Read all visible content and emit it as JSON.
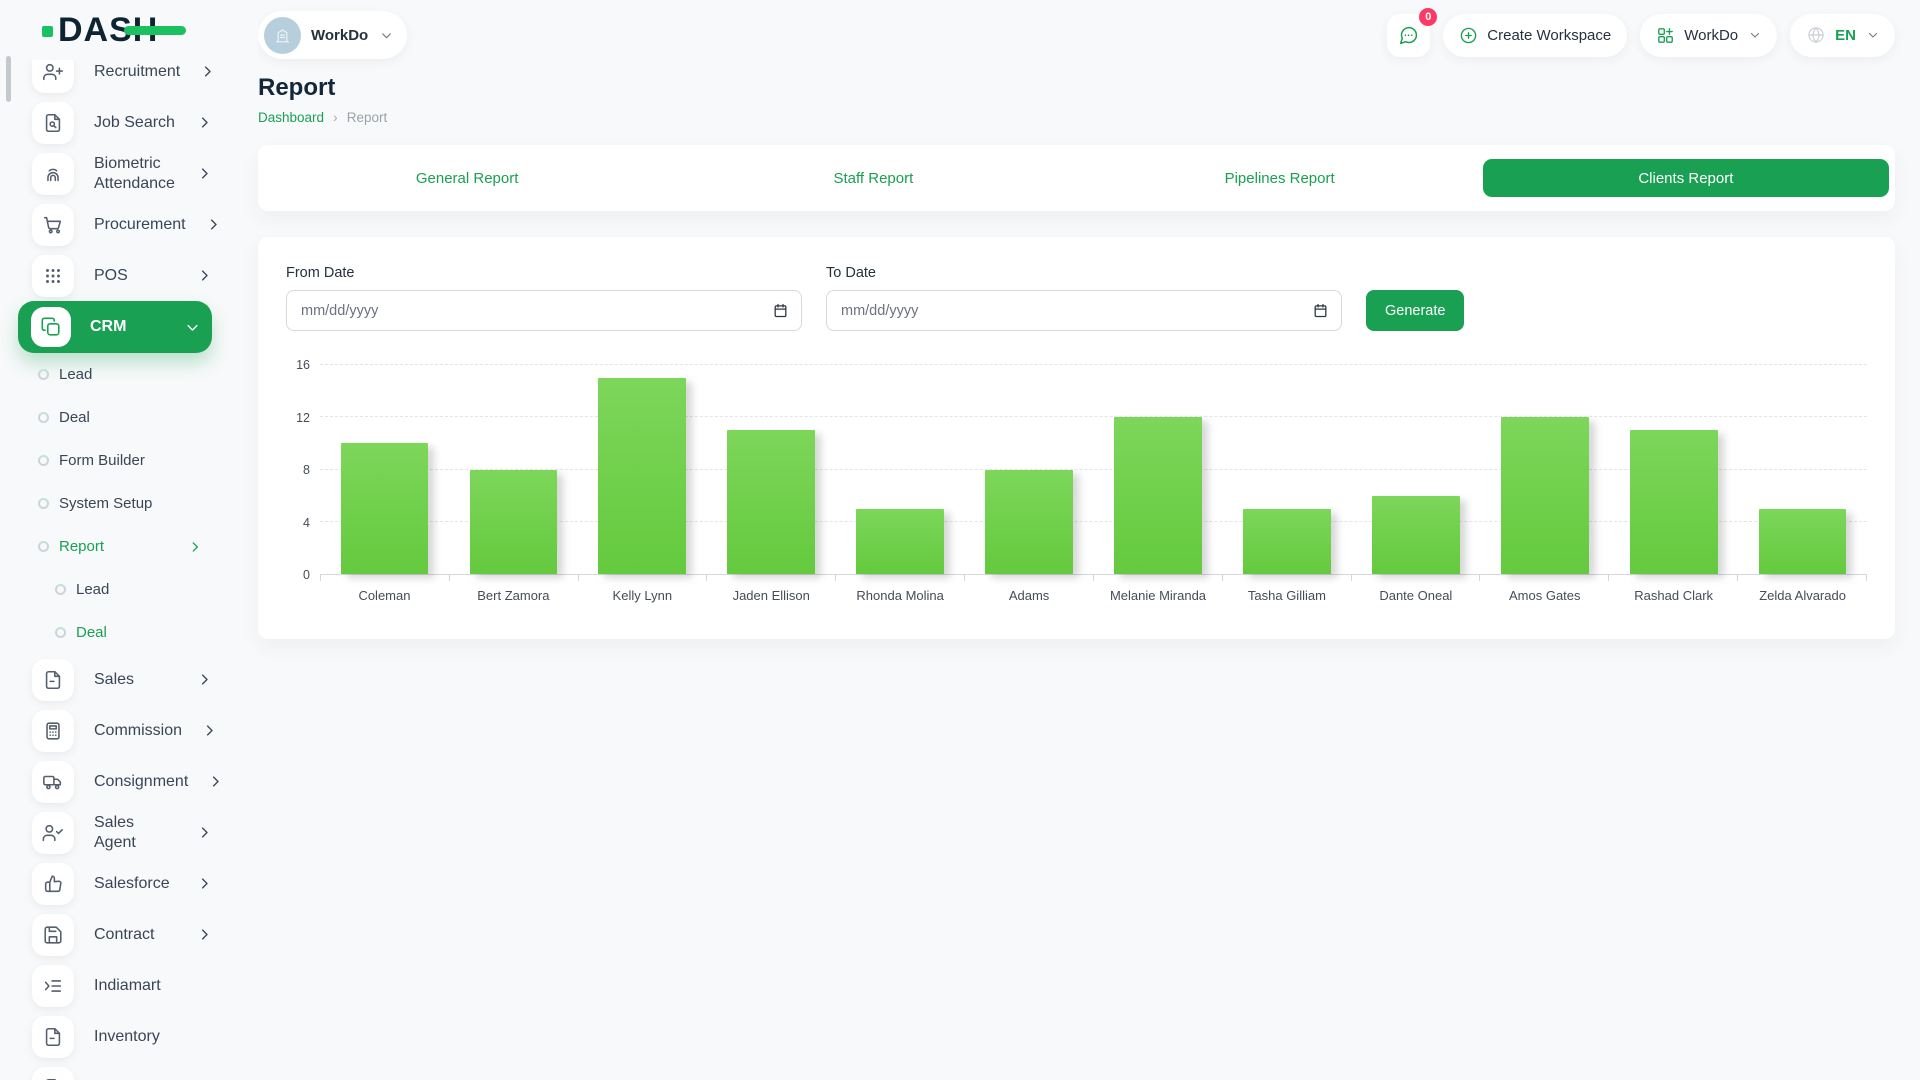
{
  "brand": {
    "name": "DASH"
  },
  "topbar": {
    "workspace": {
      "label": "WorkDo",
      "avatar_icon": "building-icon",
      "chevron_icon": "chevron-down-icon"
    },
    "messages": {
      "icon": "message-circle-icon",
      "badge": "0"
    },
    "create_workspace": {
      "icon": "plus-circle-icon",
      "label": "Create Workspace"
    },
    "app_switcher": {
      "icon": "grid-plus-icon",
      "label": "WorkDo",
      "chevron_icon": "chevron-down-icon"
    },
    "language": {
      "icon": "globe-icon",
      "label": "EN",
      "chevron_icon": "chevron-down-icon"
    }
  },
  "page": {
    "title": "Report",
    "breadcrumb": [
      "Dashboard",
      "Report"
    ],
    "breadcrumb_separator": "›"
  },
  "tabs": [
    {
      "label": "General Report",
      "active": false
    },
    {
      "label": "Staff Report",
      "active": false
    },
    {
      "label": "Pipelines Report",
      "active": false
    },
    {
      "label": "Clients Report",
      "active": true
    }
  ],
  "filters": {
    "from_label": "From Date",
    "to_label": "To Date",
    "date_placeholder": "mm/dd/yyyy",
    "generate_label": "Generate"
  },
  "chart_data": {
    "type": "bar",
    "title": "",
    "xlabel": "",
    "ylabel": "",
    "categories": [
      "Coleman",
      "Bert Zamora",
      "Kelly Lynn",
      "Jaden Ellison",
      "Rhonda Molina",
      "Adams",
      "Melanie Miranda",
      "Tasha Gilliam",
      "Dante Oneal",
      "Amos Gates",
      "Rashad Clark",
      "Zelda Alvarado"
    ],
    "values": [
      10,
      8,
      15,
      11,
      5,
      8,
      12,
      5,
      6,
      12,
      11,
      5
    ],
    "ylim": [
      0,
      16
    ],
    "ytick_step": 4,
    "grid": true,
    "legend": "none",
    "bar_color_top": "#7dd65a",
    "bar_color_bottom": "#64ca3e"
  },
  "sidebar": {
    "items": [
      {
        "label": "Recruitment",
        "icon": "user-plus-icon",
        "chevron": "right"
      },
      {
        "label": "Job Search",
        "icon": "file-search-icon",
        "chevron": "right"
      },
      {
        "label": "Biometric Attendance",
        "icon": "fingerprint-icon",
        "chevron": "right"
      },
      {
        "label": "Procurement",
        "icon": "cart-icon",
        "chevron": "right"
      },
      {
        "label": "POS",
        "icon": "grid-dots-icon",
        "chevron": "right"
      },
      {
        "label": "CRM",
        "icon": "copy-icon",
        "chevron": "down",
        "active": true
      },
      {
        "label": "Lead",
        "type": "sub"
      },
      {
        "label": "Deal",
        "type": "sub"
      },
      {
        "label": "Form Builder",
        "type": "sub"
      },
      {
        "label": "System Setup",
        "type": "sub"
      },
      {
        "label": "Report",
        "type": "sub",
        "active": true,
        "chevron": "right"
      },
      {
        "label": "Lead",
        "type": "subsub"
      },
      {
        "label": "Deal",
        "type": "subsub",
        "active": true
      },
      {
        "label": "Sales",
        "icon": "file-icon",
        "chevron": "right"
      },
      {
        "label": "Commission",
        "icon": "calculator-icon",
        "chevron": "right"
      },
      {
        "label": "Consignment",
        "icon": "truck-icon",
        "chevron": "right"
      },
      {
        "label": "Sales Agent",
        "icon": "user-check-icon",
        "chevron": "right"
      },
      {
        "label": "Salesforce",
        "icon": "thumbs-up-icon",
        "chevron": "right"
      },
      {
        "label": "Contract",
        "icon": "save-icon",
        "chevron": "right"
      },
      {
        "label": "Indiamart",
        "icon": "indent-list-icon"
      },
      {
        "label": "Inventory",
        "icon": "file-icon"
      },
      {
        "label": "",
        "icon": "file-icon",
        "partial": true
      }
    ]
  },
  "colors": {
    "primary": "#1aa053",
    "logo_accent": "#19c161",
    "badge": "#fb3b64",
    "bar_top": "#7dd65a",
    "bar_bottom": "#64ca3e"
  }
}
